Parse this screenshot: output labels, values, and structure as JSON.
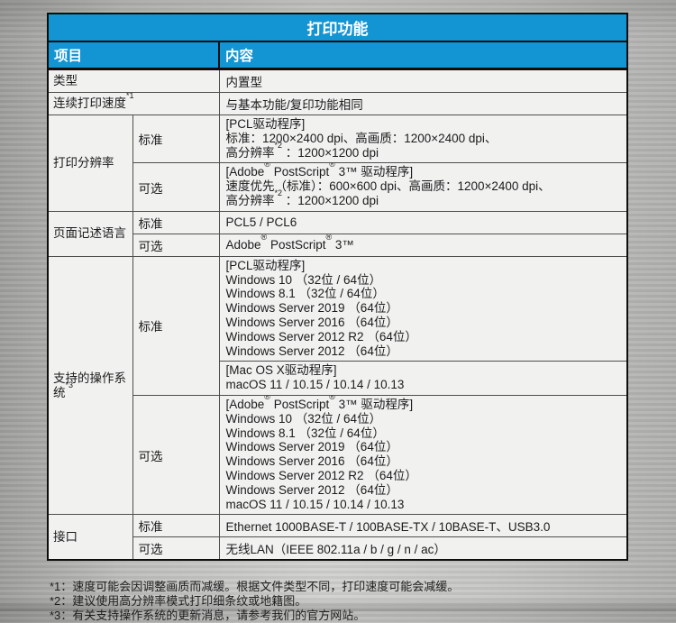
{
  "table": {
    "title": "打印功能",
    "columns": {
      "item": "项目",
      "content": "内容"
    },
    "rows": {
      "type": {
        "label": "类型",
        "value": "内置型"
      },
      "print_speed": {
        "label": "连续打印速度*1",
        "value": "与基本功能/复印功能相同"
      },
      "resolution": {
        "label": "打印分辨率",
        "standard_label": "标准",
        "standard_lines": [
          "[PCL驱动程序]",
          "标准：1200×2400 dpi、高画质：1200×2400 dpi、",
          "高分辨率*2 ：1200×1200 dpi"
        ],
        "optional_label": "可选",
        "optional_lines": [
          "[Adobe® PostScript® 3™ 驱动程序]",
          "速度优先（标准）：600×600 dpi、高画质：1200×2400 dpi、",
          "高分辨率*2 ：1200×1200 dpi"
        ]
      },
      "pdl": {
        "label": "页面记述语言",
        "standard_label": "标准",
        "standard_value": "PCL5 / PCL6",
        "optional_label": "可选",
        "optional_value": "Adobe® PostScript® 3™"
      },
      "os": {
        "label": "支持的操作系统*3",
        "standard_label": "标准",
        "pcl_lines": [
          "[PCL驱动程序]",
          "Windows 10 （32位 / 64位）",
          "Windows 8.1 （32位 / 64位）",
          "Windows Server 2019 （64位）",
          "Windows Server 2016 （64位）",
          "Windows Server 2012 R2 （64位）",
          "Windows Server 2012 （64位）"
        ],
        "mac_lines": [
          "[Mac OS X驱动程序]",
          "macOS 11 / 10.15 / 10.14 / 10.13"
        ],
        "optional_label": "可选",
        "optional_lines": [
          "[Adobe® PostScript® 3™ 驱动程序]",
          "Windows 10 （32位 / 64位）",
          "Windows 8.1 （32位 / 64位）",
          "Windows Server 2019 （64位）",
          "Windows Server 2016 （64位）",
          "Windows Server 2012 R2 （64位）",
          "Windows Server 2012 （64位）",
          "macOS 11 / 10.15 / 10.14 / 10.13"
        ]
      },
      "interface": {
        "label": "接口",
        "standard_label": "标准",
        "standard_value": "Ethernet 1000BASE-T / 100BASE-TX / 10BASE-T、USB3.0",
        "optional_label": "可选",
        "optional_value": "无线LAN（IEEE 802.11a / b / g / n / ac）"
      }
    }
  },
  "footnotes": [
    "*1：速度可能会因调整画质而减缓。根据文件类型不同，打印速度可能会减缓。",
    "*2：建议使用高分辨率模式打印细条纹或地籍图。",
    "*3：有关支持操作系统的更新消息，请参考我们的官方网站。"
  ],
  "colors": {
    "header_blue": "#1495d3",
    "body_bg": "#f1f1f0",
    "border_dark": "#0e0e0e",
    "border_inner": "#4e4e4e"
  }
}
